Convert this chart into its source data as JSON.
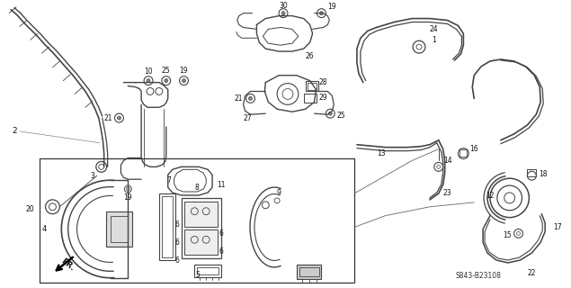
{
  "bg_color": "#ffffff",
  "fig_width": 6.35,
  "fig_height": 3.2,
  "dpi": 100,
  "ref_code": "S843-B23108",
  "label_color": "#111111",
  "diagram_color": "#444444"
}
